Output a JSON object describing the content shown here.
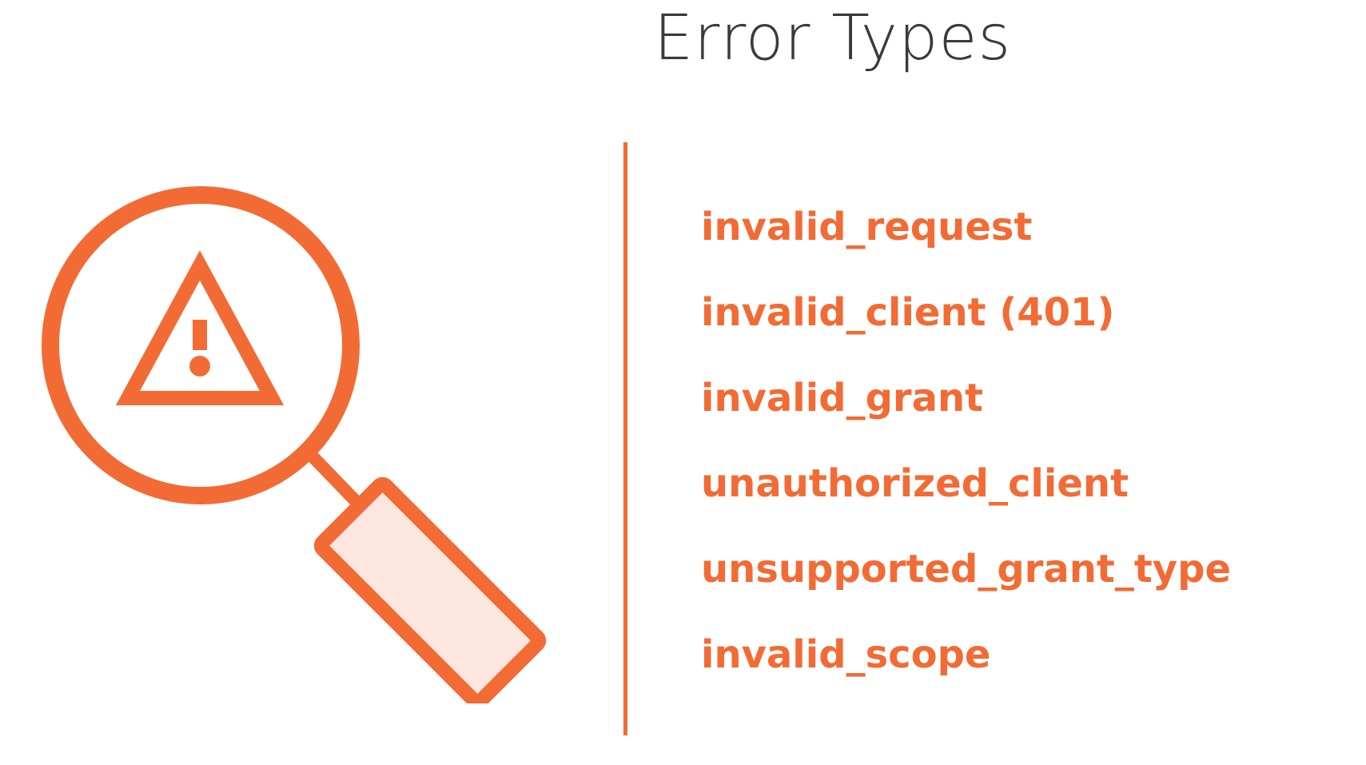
{
  "title": "Error Types",
  "icon": "magnifier-warning-icon",
  "colors": {
    "accent": "#F26B35",
    "accent_light": "#FCE6DE",
    "title_text": "#3A3A3A"
  },
  "error_types": [
    "invalid_request",
    "invalid_client (401)",
    "invalid_grant",
    "unauthorized_client",
    "unsupported_grant_type",
    "invalid_scope"
  ]
}
